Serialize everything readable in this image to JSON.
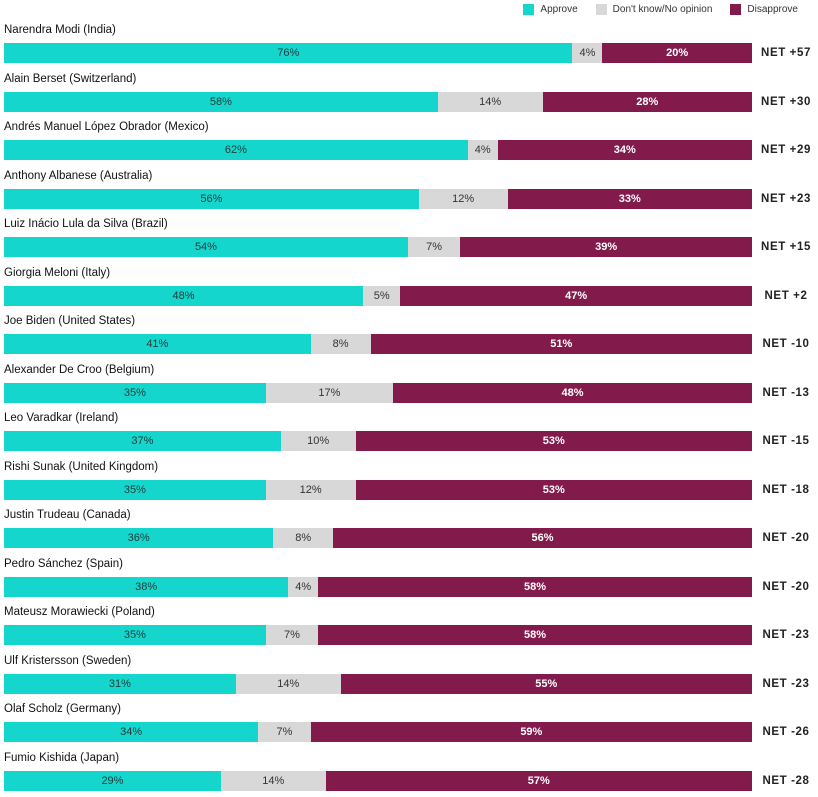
{
  "legend": {
    "approve": "Approve",
    "dont_know": "Don't know/No opinion",
    "disapprove": "Disapprove"
  },
  "colors": {
    "approve": "#14d6cc",
    "dont_know": "#d8d8d8",
    "disapprove": "#831a4c",
    "highlight": "#e0157f"
  },
  "chart_data": {
    "type": "bar",
    "stacked": true,
    "orientation": "horizontal",
    "series_names": [
      "Approve",
      "Don't know/No opinion",
      "Disapprove"
    ],
    "rows": [
      {
        "leader": "Narendra Modi",
        "country": "(India)",
        "approve": 76,
        "dont_know": 4,
        "disapprove": 20,
        "net": "NET +57",
        "highlight": false
      },
      {
        "leader": "Alain Berset",
        "country": "(Switzerland)",
        "approve": 58,
        "dont_know": 14,
        "disapprove": 28,
        "net": "NET +30",
        "highlight": false
      },
      {
        "leader": "Andrés Manuel López Obrador",
        "country": "(Mexico)",
        "approve": 62,
        "dont_know": 4,
        "disapprove": 34,
        "net": "NET +29",
        "highlight": false
      },
      {
        "leader": "Anthony Albanese",
        "country": "(Australia)",
        "approve": 56,
        "dont_know": 12,
        "disapprove": 33,
        "net": "NET +23",
        "highlight": false
      },
      {
        "leader": "Luiz Inácio Lula da Silva",
        "country": "(Brazil)",
        "approve": 54,
        "dont_know": 7,
        "disapprove": 39,
        "net": "NET +15",
        "highlight": false
      },
      {
        "leader": "Giorgia Meloni",
        "country": "(Italy)",
        "approve": 48,
        "dont_know": 5,
        "disapprove": 47,
        "net": "NET +2",
        "highlight": false
      },
      {
        "leader": "Joe Biden",
        "country": "(United States)",
        "approve": 41,
        "dont_know": 8,
        "disapprove": 51,
        "net": "NET -10",
        "highlight": true
      },
      {
        "leader": "Alexander De Croo",
        "country": "(Belgium)",
        "approve": 35,
        "dont_know": 17,
        "disapprove": 48,
        "net": "NET -13",
        "highlight": false
      },
      {
        "leader": "Leo Varadkar",
        "country": "(Ireland)",
        "approve": 37,
        "dont_know": 10,
        "disapprove": 53,
        "net": "NET -15",
        "highlight": false
      },
      {
        "leader": "Rishi Sunak",
        "country": "(United Kingdom)",
        "approve": 35,
        "dont_know": 12,
        "disapprove": 53,
        "net": "NET -18",
        "highlight": false
      },
      {
        "leader": "Justin Trudeau",
        "country": "(Canada)",
        "approve": 36,
        "dont_know": 8,
        "disapprove": 56,
        "net": "NET -20",
        "highlight": false
      },
      {
        "leader": "Pedro Sánchez",
        "country": "(Spain)",
        "approve": 38,
        "dont_know": 4,
        "disapprove": 58,
        "net": "NET -20",
        "highlight": false
      },
      {
        "leader": "Mateusz Morawiecki",
        "country": "(Poland)",
        "approve": 35,
        "dont_know": 7,
        "disapprove": 58,
        "net": "NET -23",
        "highlight": false
      },
      {
        "leader": "Ulf Kristersson",
        "country": "(Sweden)",
        "approve": 31,
        "dont_know": 14,
        "disapprove": 55,
        "net": "NET -23",
        "highlight": false
      },
      {
        "leader": "Olaf Scholz",
        "country": "(Germany)",
        "approve": 34,
        "dont_know": 7,
        "disapprove": 59,
        "net": "NET -26",
        "highlight": false
      },
      {
        "leader": "Fumio Kishida",
        "country": "(Japan)",
        "approve": 29,
        "dont_know": 14,
        "disapprove": 57,
        "net": "NET -28",
        "highlight": true
      }
    ]
  }
}
